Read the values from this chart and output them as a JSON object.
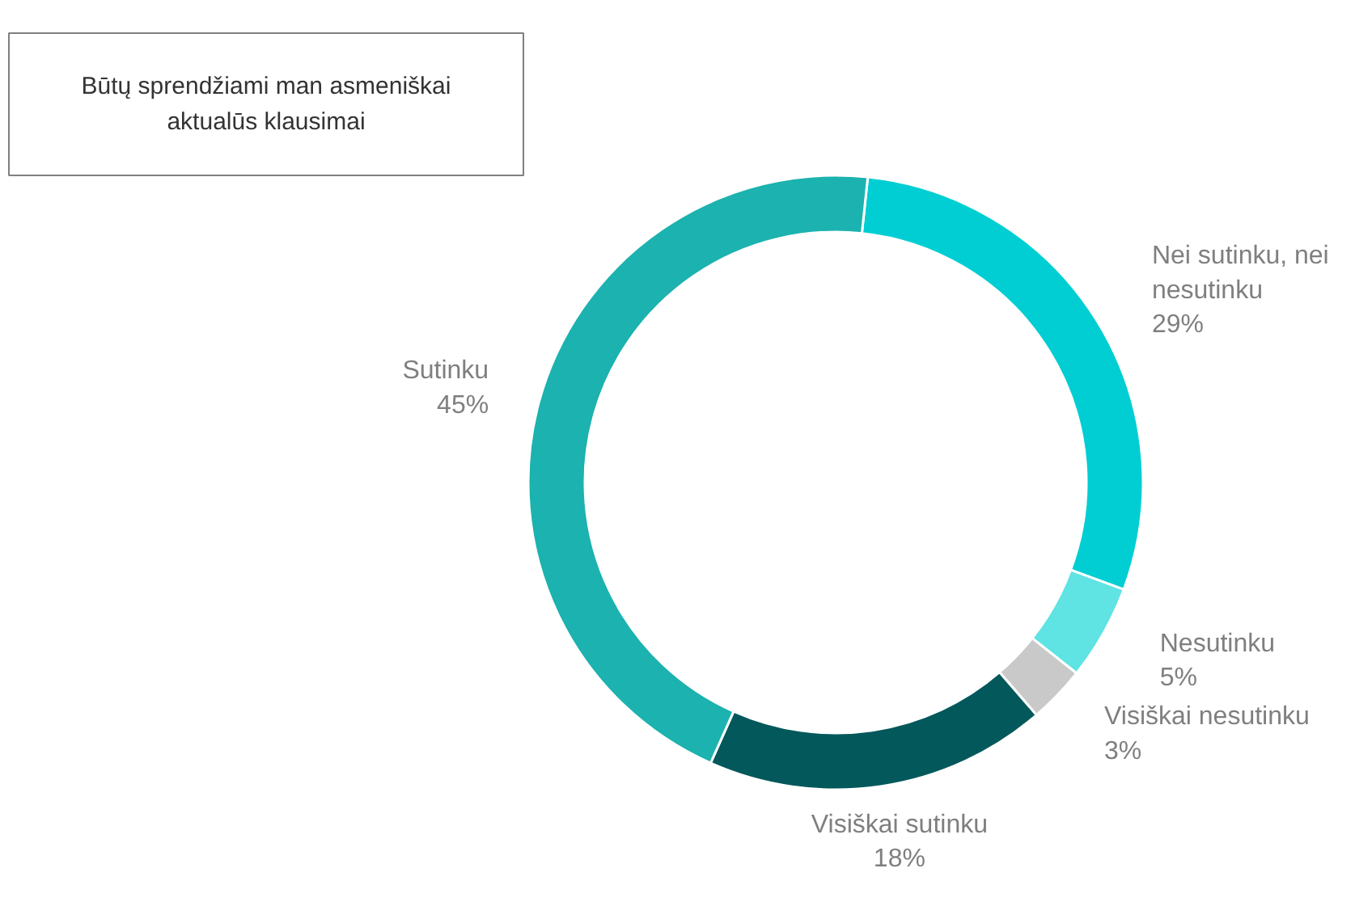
{
  "chart_data": {
    "type": "donut",
    "title": "Būtų sprendžiami man asmeniškai aktualūs klausimai",
    "categories": [
      "Nei sutinku, nei nesutinku",
      "Nesutinku",
      "Visiškai nesutinku",
      "Visiškai sutinku",
      "Sutinku"
    ],
    "values": [
      29,
      5,
      3,
      18,
      45
    ],
    "colors": [
      "#00ced3",
      "#5fe3e3",
      "#c9c9c9",
      "#02585b",
      "#1bb2af"
    ],
    "value_labels": [
      "29%",
      "5%",
      "3%",
      "18%",
      "45%"
    ]
  }
}
